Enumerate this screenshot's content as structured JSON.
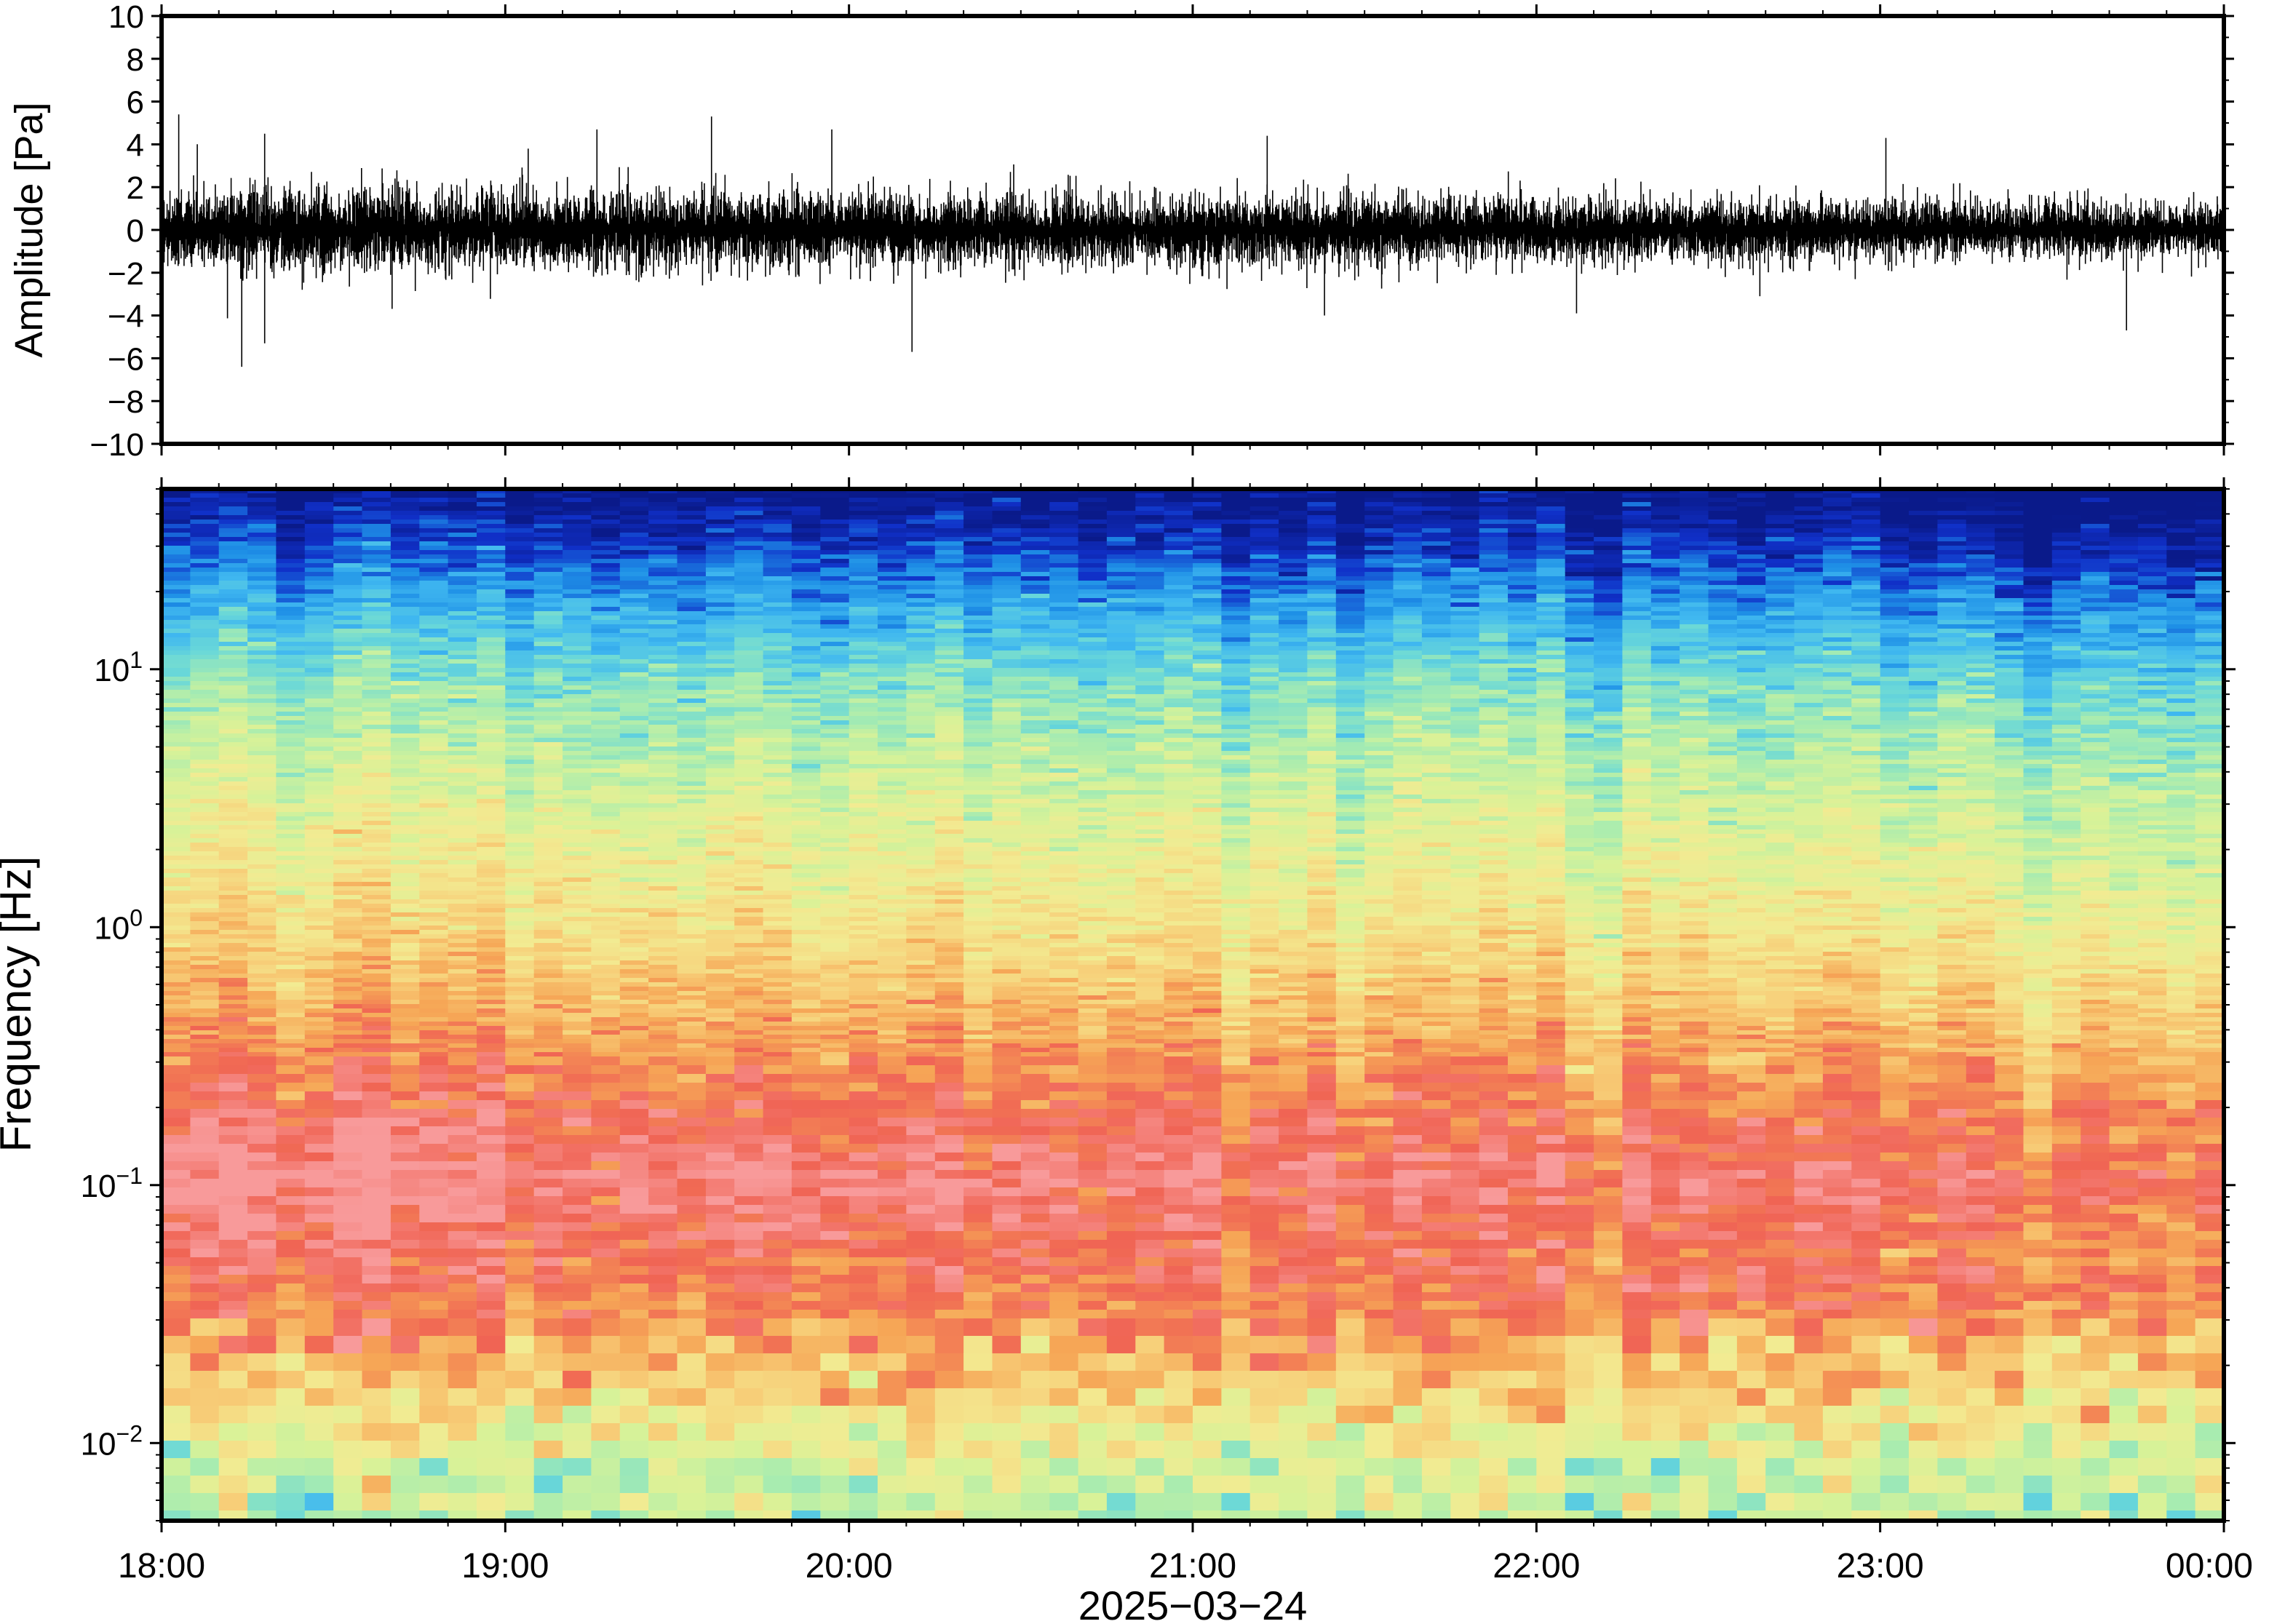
{
  "chart_data": [
    {
      "type": "line",
      "ylabel": "Amplitude [Pa]",
      "ylim": [
        -10,
        10
      ],
      "yticks": [
        {
          "value": 10,
          "label": "10"
        },
        {
          "value": 8,
          "label": "8"
        },
        {
          "value": 6,
          "label": "6"
        },
        {
          "value": 4,
          "label": "4"
        },
        {
          "value": 2,
          "label": "2"
        },
        {
          "value": 0,
          "label": "0"
        },
        {
          "value": -2,
          "label": "−2"
        },
        {
          "value": -4,
          "label": "−4"
        },
        {
          "value": -6,
          "label": "−6"
        },
        {
          "value": -8,
          "label": "−8"
        },
        {
          "value": -10,
          "label": "−10"
        }
      ],
      "xlim": [
        "2025-03-24 18:00",
        "2025-03-25 00:00"
      ],
      "grid": false,
      "peak_events": [
        {
          "time": "18:03",
          "value": 5.4
        },
        {
          "time": "18:14",
          "value": -6.4
        },
        {
          "time": "18:18",
          "value": -5.3
        },
        {
          "time": "18:18",
          "value": 4.5
        },
        {
          "time": "19:04",
          "value": 3.8
        },
        {
          "time": "19:16",
          "value": 4.7
        },
        {
          "time": "19:36",
          "value": 5.3
        },
        {
          "time": "19:57",
          "value": 4.7
        },
        {
          "time": "20:11",
          "value": -5.7
        },
        {
          "time": "21:13",
          "value": 4.4
        },
        {
          "time": "21:23",
          "value": -4.0
        },
        {
          "time": "22:07",
          "value": -3.9
        },
        {
          "time": "22:39",
          "value": -3.1
        },
        {
          "time": "23:01",
          "value": 4.3
        },
        {
          "time": "23:43",
          "value": -4.7
        }
      ]
    },
    {
      "type": "heatmap",
      "ylabel": "Frequency [Hz]",
      "xlabel": "2025−03−24",
      "yscale": "log",
      "ylim": [
        0.005,
        50
      ],
      "yticks": [
        {
          "value": 0.01,
          "base": "10",
          "exp": "−2"
        },
        {
          "value": 0.1,
          "base": "10",
          "exp": "−1"
        },
        {
          "value": 1,
          "base": "10",
          "exp": "0"
        },
        {
          "value": 10,
          "base": "10",
          "exp": "1"
        }
      ],
      "xticks": [
        "18:00",
        "19:00",
        "20:00",
        "21:00",
        "22:00",
        "23:00",
        "00:00"
      ],
      "colormap": [
        "#0a1a8a",
        "#1030c8",
        "#1e8fe6",
        "#40b8f0",
        "#6ad8d8",
        "#a8ecb0",
        "#d8f298",
        "#f2eb92",
        "#f7d07a",
        "#f6a656",
        "#f06454",
        "#f89a9a"
      ],
      "band_profile_hz_to_level": [
        {
          "hz": 50,
          "level": 0.0
        },
        {
          "hz": 30,
          "level": 0.12
        },
        {
          "hz": 15,
          "level": 0.3
        },
        {
          "hz": 8,
          "level": 0.45
        },
        {
          "hz": 3,
          "level": 0.58
        },
        {
          "hz": 1,
          "level": 0.7
        },
        {
          "hz": 0.5,
          "level": 0.8
        },
        {
          "hz": 0.25,
          "level": 0.9
        },
        {
          "hz": 0.1,
          "level": 1.0
        },
        {
          "hz": 0.05,
          "level": 0.92
        },
        {
          "hz": 0.03,
          "level": 0.85
        },
        {
          "hz": 0.015,
          "level": 0.7
        },
        {
          "hz": 0.008,
          "level": 0.55
        },
        {
          "hz": 0.005,
          "level": 0.5
        }
      ],
      "grid": false
    }
  ]
}
